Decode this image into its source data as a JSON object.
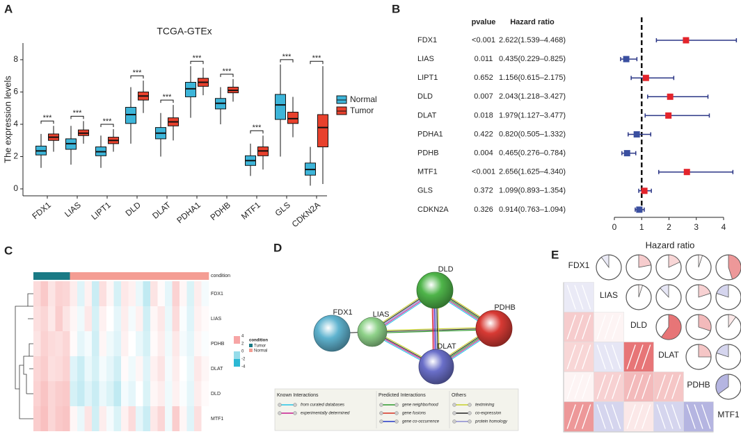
{
  "panel_labels": [
    "A",
    "B",
    "C",
    "D",
    "E"
  ],
  "chart_data": [
    {
      "type": "box",
      "title": "TCGA-GTEx",
      "y_label": "The expression levels",
      "categories": [
        "FDX1",
        "LIAS",
        "LIPT1",
        "DLD",
        "DLAT",
        "PDHA1",
        "PDHB",
        "MTF1",
        "GLS",
        "CDKN2A"
      ],
      "ylim": [
        -0.43,
        9.03
      ],
      "yticks": [
        0,
        2,
        4,
        6,
        8
      ],
      "legend": "right",
      "series": [
        {
          "name": "Normal",
          "color": "#3db5d9",
          "values": [
            [
              1.3,
              2.1,
              2.35,
              2.65,
              3.4
            ],
            [
              1.5,
              2.45,
              2.8,
              3.1,
              3.9
            ],
            [
              1.3,
              2.05,
              2.3,
              2.6,
              3.3
            ],
            [
              2.8,
              4.05,
              4.6,
              5.05,
              6.3
            ],
            [
              2.0,
              3.1,
              3.45,
              3.8,
              4.7
            ],
            [
              4.4,
              5.7,
              6.2,
              6.6,
              7.6
            ],
            [
              4.0,
              4.95,
              5.3,
              5.6,
              6.3
            ],
            [
              0.8,
              1.45,
              1.75,
              2.05,
              2.8
            ],
            [
              2.0,
              4.3,
              5.2,
              5.85,
              7.7
            ],
            [
              0.2,
              0.85,
              1.2,
              1.6,
              2.6
            ]
          ]
        },
        {
          "name": "Tumor",
          "color": "#e8412d",
          "values": [
            [
              2.3,
              3.0,
              3.2,
              3.4,
              3.9
            ],
            [
              2.8,
              3.3,
              3.45,
              3.65,
              4.2
            ],
            [
              2.3,
              2.8,
              3.0,
              3.2,
              3.7
            ],
            [
              4.7,
              5.5,
              5.75,
              6.0,
              6.7
            ],
            [
              3.0,
              3.9,
              4.15,
              4.4,
              5.2
            ],
            [
              5.8,
              6.35,
              6.6,
              6.85,
              7.5
            ],
            [
              5.4,
              5.95,
              6.1,
              6.3,
              6.8
            ],
            [
              1.2,
              2.05,
              2.35,
              2.6,
              3.3
            ],
            [
              3.2,
              4.05,
              4.35,
              4.75,
              5.7
            ],
            [
              0.3,
              2.6,
              3.8,
              4.6,
              7.6
            ]
          ]
        }
      ],
      "annotations": [
        "***",
        "***",
        "***",
        "***",
        "***",
        "***",
        "***",
        "***",
        "***",
        "***"
      ]
    },
    {
      "type": "forest",
      "categories": [
        "FDX1",
        "LIAS",
        "LIPT1",
        "DLD",
        "DLAT",
        "PDHA1",
        "PDHB",
        "MTF1",
        "GLS",
        "CDKN2A"
      ],
      "column_headers": [
        "pvalue",
        "Hazard ratio"
      ],
      "pvalues": [
        "<0.001",
        "0.011",
        "0.652",
        "0.007",
        "0.018",
        "0.422",
        "0.004",
        "<0.001",
        "0.372",
        "0.326"
      ],
      "values": [
        2.622,
        0.435,
        1.156,
        2.043,
        1.979,
        0.82,
        0.465,
        2.656,
        1.099,
        0.914
      ],
      "lower": [
        1.539,
        0.229,
        0.615,
        1.218,
        1.127,
        0.505,
        0.276,
        1.625,
        0.893,
        0.763
      ],
      "upper": [
        4.468,
        0.825,
        2.175,
        3.427,
        3.477,
        1.332,
        0.784,
        4.34,
        1.354,
        1.094
      ],
      "value_labels": [
        "2.622(1.539–4.468)",
        "0.435(0.229–0.825)",
        "1.156(0.615–2.175)",
        "2.043(1.218–3.427)",
        "1.979(1.127–3.477)",
        "0.820(0.505–1.332)",
        "0.465(0.276–0.784)",
        "2.656(1.625–4.340)",
        "1.099(0.893–1.354)",
        "0.914(0.763–1.094)"
      ],
      "xlim": [
        0,
        4
      ],
      "xticks": [
        0,
        1,
        2,
        3,
        4
      ],
      "x_label": "Hazard ratio",
      "reference": 1,
      "colors": {
        "above": "#e3242b",
        "below": "#3a4fa0",
        "whisker": "#2a3585"
      }
    }
  ],
  "heatmap": {
    "rows": [
      "FDX1",
      "LIAS",
      "PDHB",
      "DLAT",
      "DLD",
      "MTF1"
    ],
    "condition_label": "condition",
    "condition": [
      "Tumor",
      "Tumor",
      "Tumor",
      "Tumor",
      "Tumor",
      "Normal",
      "Normal",
      "Normal",
      "Normal",
      "Normal",
      "Normal",
      "Normal",
      "Normal",
      "Normal",
      "Normal",
      "Normal",
      "Normal",
      "Normal",
      "Normal",
      "Normal",
      "Normal",
      "Normal",
      "Normal",
      "Normal"
    ],
    "groups": [
      {
        "name": "Tumor",
        "color": "#1a7a85"
      },
      {
        "name": "Normal",
        "color": "#f49d93"
      }
    ],
    "legend_title": "condition",
    "scale_ticks": [
      4,
      2,
      0,
      -2,
      -4
    ],
    "scale_colors": {
      "low": "#2cb8d4",
      "mid": "#ffffff",
      "high": "#ee4a4a"
    },
    "values": [
      [
        0.8,
        1.2,
        0.6,
        1.0,
        0.9,
        0.4,
        -0.6,
        0.3,
        -1.0,
        0.7,
        0.2,
        -0.8,
        0.5,
        0.3,
        -0.4,
        -1.2,
        0.6,
        0.1,
        -0.5,
        1.0,
        0.2,
        -0.7,
        0.4,
        -0.2
      ],
      [
        0.7,
        0.9,
        0.5,
        1.1,
        0.6,
        0.2,
        -0.3,
        0.5,
        -0.8,
        0.3,
        0.0,
        -0.5,
        0.4,
        -0.2,
        0.3,
        -0.9,
        0.2,
        0.5,
        -0.4,
        0.8,
        -0.1,
        -0.6,
        0.3,
        0.1
      ],
      [
        0.6,
        1.0,
        0.8,
        0.7,
        0.9,
        0.1,
        -0.5,
        -0.2,
        -0.9,
        0.2,
        -0.3,
        -0.6,
        0.3,
        0.0,
        -0.4,
        -0.8,
        0.1,
        0.4,
        -0.3,
        0.5,
        -0.2,
        -0.5,
        0.2,
        -0.1
      ],
      [
        0.9,
        1.1,
        0.7,
        0.8,
        1.0,
        -0.6,
        -1.0,
        -0.4,
        -0.8,
        -0.2,
        -0.5,
        -0.9,
        0.1,
        -0.3,
        0.2,
        -0.6,
        0.3,
        0.6,
        -0.2,
        0.4,
        0.0,
        -0.4,
        0.5,
        0.2
      ],
      [
        1.0,
        1.3,
        0.9,
        1.1,
        1.2,
        -0.8,
        -1.1,
        -0.6,
        -1.0,
        -0.4,
        -0.7,
        -1.2,
        -0.2,
        -0.5,
        0.0,
        -0.7,
        0.2,
        0.4,
        -0.3,
        0.3,
        -0.1,
        -0.5,
        0.4,
        0.1
      ],
      [
        1.1,
        1.4,
        0.9,
        1.2,
        1.3,
        0.2,
        -0.4,
        0.6,
        -0.9,
        0.4,
        -0.2,
        -0.7,
        0.3,
        0.8,
        -0.5,
        -1.0,
        0.5,
        0.9,
        -0.3,
        1.1,
        0.2,
        -0.6,
        0.7,
        0.0
      ]
    ]
  },
  "network": {
    "nodes": [
      {
        "label": "FDX1",
        "color": "#5fb3cf"
      },
      {
        "label": "LIAS",
        "color": "#8fd28a"
      },
      {
        "label": "DLD",
        "color": "#4fb54a"
      },
      {
        "label": "PDHB",
        "color": "#d83a34"
      },
      {
        "label": "DLAT",
        "color": "#6a6fc9"
      }
    ],
    "edges": [
      {
        "from": "FDX1",
        "to": "LIAS",
        "colors": [
          "#333333"
        ]
      },
      {
        "from": "LIAS",
        "to": "DLD",
        "colors": [
          "#c6cf28",
          "#222222",
          "#8a8ad0",
          "#c8198e",
          "#22c4e6"
        ]
      },
      {
        "from": "LIAS",
        "to": "PDHB",
        "colors": [
          "#c6cf28",
          "#222222",
          "#2a9a2a"
        ]
      },
      {
        "from": "LIAS",
        "to": "DLAT",
        "colors": [
          "#c6cf28",
          "#222222",
          "#c8198e",
          "#22c4e6"
        ]
      },
      {
        "from": "DLD",
        "to": "PDHB",
        "colors": [
          "#c6cf28",
          "#222222",
          "#2a9a2a",
          "#c8198e",
          "#22c4e6"
        ]
      },
      {
        "from": "DLD",
        "to": "DLAT",
        "colors": [
          "#c6cf28",
          "#222222",
          "#8a8ad0",
          "#2238c8",
          "#c8198e",
          "#d8301e"
        ]
      },
      {
        "from": "DLAT",
        "to": "PDHB",
        "colors": [
          "#c6cf28",
          "#222222",
          "#2a9a2a",
          "#c8198e",
          "#22c4e6"
        ]
      }
    ],
    "legend": [
      {
        "title": "Known Interactions",
        "items": [
          {
            "label": "from curated databases",
            "color": "#22c4e6"
          },
          {
            "label": "experimentally determined",
            "color": "#c8198e"
          }
        ]
      },
      {
        "title": "Predicted Interactions",
        "items": [
          {
            "label": "gene neighborhood",
            "color": "#2a9a2a"
          },
          {
            "label": "gene fusions",
            "color": "#d8301e"
          },
          {
            "label": "gene co-occurrence",
            "color": "#2238c8"
          }
        ]
      },
      {
        "title": "Others",
        "items": [
          {
            "label": "textmining",
            "color": "#c6cf28"
          },
          {
            "label": "co-expression",
            "color": "#222222"
          },
          {
            "label": "protein homology",
            "color": "#8a8ad0"
          }
        ]
      }
    ]
  },
  "correlogram": {
    "variables": [
      "FDX1",
      "LIAS",
      "DLD",
      "DLAT",
      "PDHB",
      "MTF1"
    ],
    "positive_color": "#d7191c",
    "negative_color": "#2c2ca8",
    "matrix": [
      [
        1,
        -0.1,
        0.22,
        0.18,
        0.05,
        0.45
      ],
      [
        -0.1,
        1,
        0.05,
        -0.12,
        0.2,
        -0.2
      ],
      [
        0.22,
        0.05,
        1,
        0.6,
        0.3,
        0.1
      ],
      [
        0.18,
        -0.12,
        0.6,
        1,
        0.25,
        -0.2
      ],
      [
        0.05,
        0.2,
        0.3,
        0.25,
        1,
        -0.35
      ],
      [
        0.45,
        -0.2,
        0.1,
        -0.2,
        -0.35,
        1
      ]
    ]
  }
}
